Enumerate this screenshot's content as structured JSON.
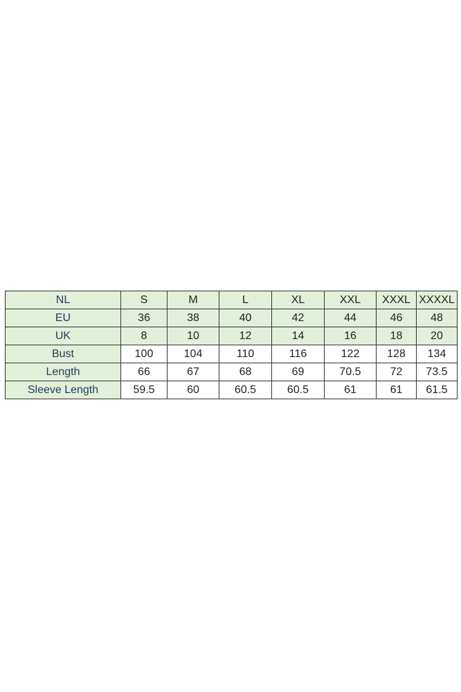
{
  "table": {
    "rows": [
      {
        "label": "NL",
        "values": [
          "S",
          "M",
          "L",
          "XL",
          "XXL",
          "XXXL",
          "XXXXL"
        ],
        "green": true
      },
      {
        "label": "EU",
        "values": [
          "36",
          "38",
          "40",
          "42",
          "44",
          "46",
          "48"
        ],
        "green": true
      },
      {
        "label": "UK",
        "values": [
          "8",
          "10",
          "12",
          "14",
          "16",
          "18",
          "20"
        ],
        "green": true
      },
      {
        "label": "Bust",
        "values": [
          "100",
          "104",
          "110",
          "116",
          "122",
          "128",
          "134"
        ],
        "green": false
      },
      {
        "label": "Length",
        "values": [
          "66",
          "67",
          "68",
          "69",
          "70.5",
          "72",
          "73.5"
        ],
        "green": false
      },
      {
        "label": "Sleeve Length",
        "values": [
          "59.5",
          "60",
          "60.5",
          "60.5",
          "61",
          "61",
          "61.5"
        ],
        "green": false
      }
    ]
  },
  "colors": {
    "header_fill": "#e2efd9",
    "label_text": "#1f3b5c"
  }
}
